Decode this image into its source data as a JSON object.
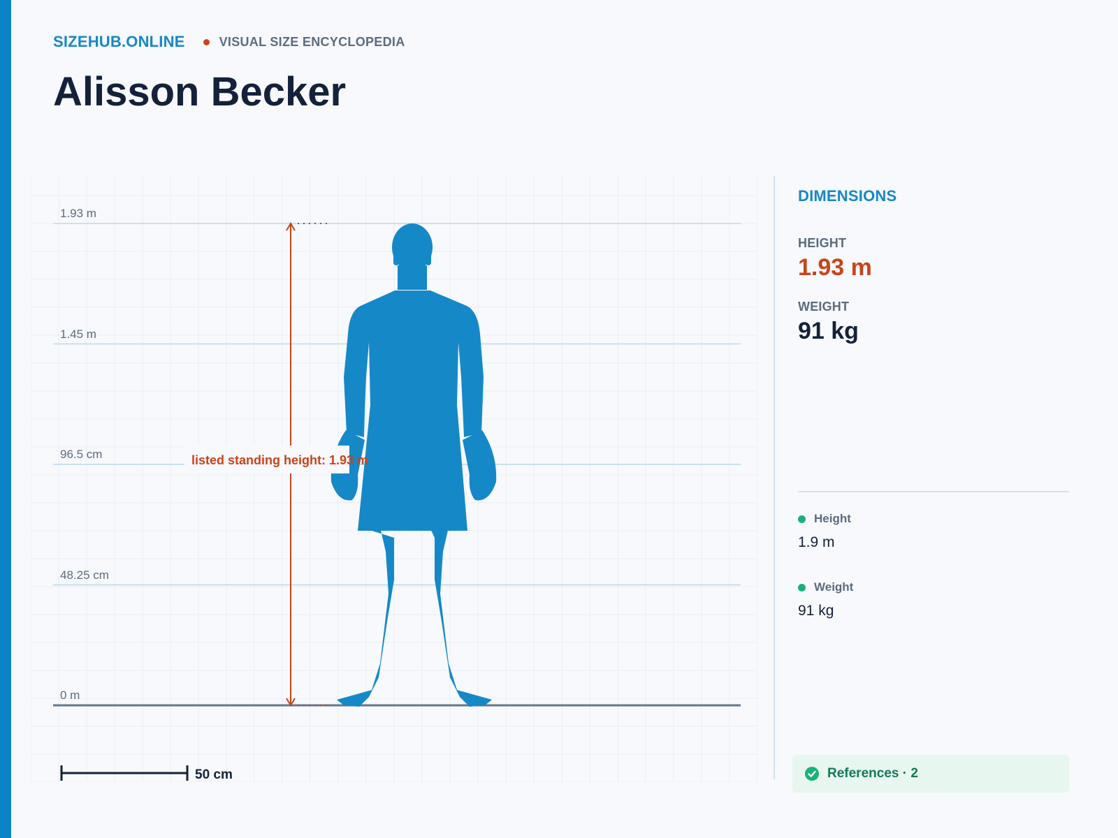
{
  "header": {
    "brand": "SIZEHUB.ONLINE",
    "tagline": "VISUAL SIZE ENCYCLOPEDIA",
    "title": "Alisson Becker"
  },
  "chart": {
    "ticks": [
      "1.93 m",
      "1.45 m",
      "96.5 cm",
      "48.25 cm",
      "0 m"
    ],
    "annotation": "listed standing height: 1.93 m",
    "scale_label": "50 cm",
    "measured_height_m": 1.93
  },
  "panel": {
    "title": "DIMENSIONS",
    "height_label": "HEIGHT",
    "height_value": "1.93 m",
    "weight_label": "WEIGHT",
    "weight_value": "91 kg",
    "sources": [
      {
        "label": "Height",
        "value": "1.9 m"
      },
      {
        "label": "Weight",
        "value": "91 kg"
      }
    ],
    "references": "References · 2"
  },
  "colors": {
    "accent": "#0a84c6",
    "brand": "#1787c7",
    "highlight": "#c8441b",
    "silhouette": "#1588c8",
    "success": "#19b27c"
  }
}
